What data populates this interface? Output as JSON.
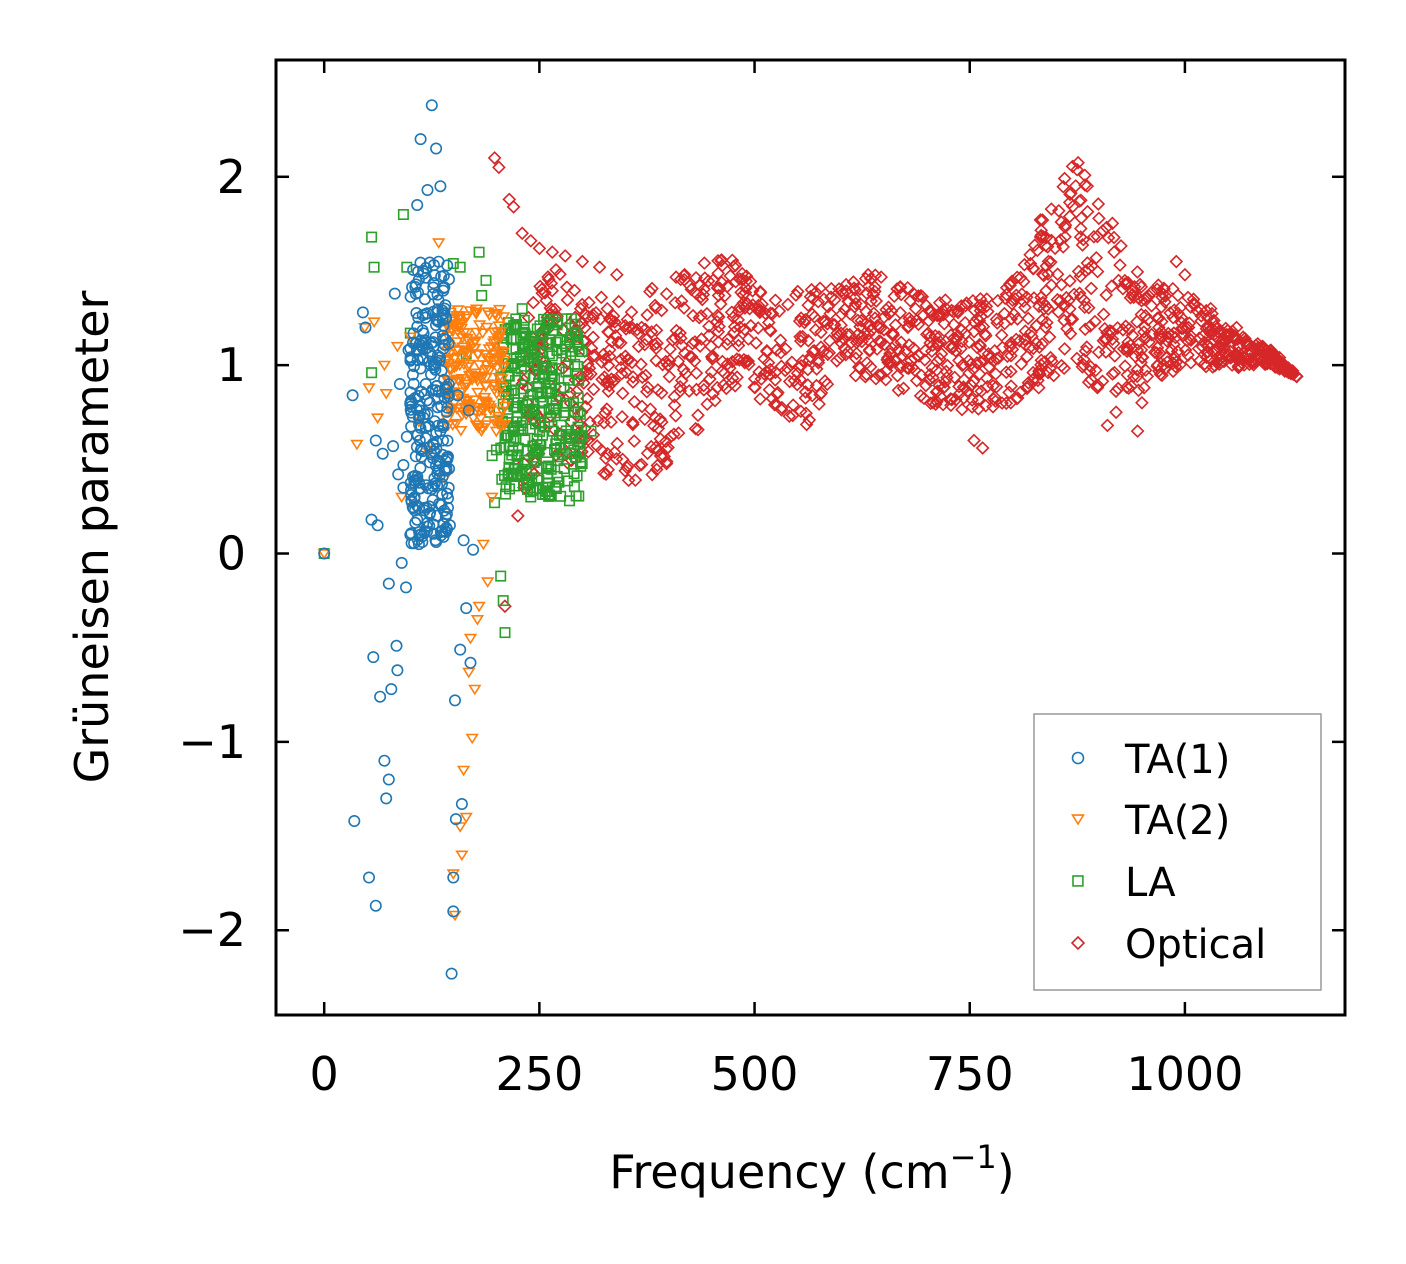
{
  "chart_data": {
    "type": "scatter",
    "xlabel": "Frequency (cm",
    "xlabel_sup": "−1",
    "xlabel_close": ")",
    "ylabel": "Grüneisen parameter",
    "xlim": [
      -56,
      1186
    ],
    "ylim": [
      -2.45,
      2.62
    ],
    "xticks": [
      0,
      250,
      500,
      750,
      1000
    ],
    "xtick_labels": [
      "0",
      "250",
      "500",
      "750",
      "1000"
    ],
    "yticks": [
      -2,
      -1,
      0,
      1,
      2
    ],
    "ytick_labels": [
      "−2",
      "−1",
      "0",
      "1",
      "2"
    ],
    "legend_position": "lower-right",
    "series": [
      {
        "name": "TA(1)",
        "marker": "circle",
        "color": "#1f77b4",
        "points": [
          [
            0,
            0
          ],
          [
            33,
            0.84
          ],
          [
            45,
            1.28
          ],
          [
            48,
            1.2
          ],
          [
            55,
            0.18
          ],
          [
            57,
            -0.55
          ],
          [
            60,
            0.6
          ],
          [
            62,
            0.15
          ],
          [
            65,
            -0.76
          ],
          [
            68,
            0.53
          ],
          [
            70,
            -1.1
          ],
          [
            72,
            -1.3
          ],
          [
            75,
            -0.16
          ],
          [
            78,
            -0.72
          ],
          [
            80,
            0.57
          ],
          [
            82,
            1.38
          ],
          [
            84,
            -0.49
          ],
          [
            85,
            -0.62
          ],
          [
            88,
            0.9
          ],
          [
            90,
            -0.05
          ],
          [
            92,
            0.47
          ],
          [
            95,
            -0.18
          ],
          [
            98,
            1.08
          ],
          [
            100,
            0.8
          ],
          [
            105,
            0.3
          ],
          [
            108,
            1.85
          ],
          [
            110,
            0.72
          ],
          [
            112,
            2.2
          ],
          [
            115,
            1.5
          ],
          [
            118,
            0.9
          ],
          [
            120,
            1.93
          ],
          [
            122,
            0.25
          ],
          [
            125,
            2.38
          ],
          [
            127,
            1.1
          ],
          [
            130,
            2.15
          ],
          [
            132,
            1.05
          ],
          [
            135,
            1.95
          ],
          [
            138,
            0.6
          ],
          [
            140,
            1.3
          ],
          [
            145,
            0.45
          ],
          [
            148,
            -2.23
          ],
          [
            150,
            -1.72
          ],
          [
            152,
            -0.78
          ],
          [
            155,
            0.84
          ],
          [
            158,
            -0.51
          ],
          [
            160,
            -1.33
          ],
          [
            162,
            0.07
          ],
          [
            165,
            -0.29
          ],
          [
            168,
            0.76
          ],
          [
            170,
            -0.58
          ],
          [
            173,
            0.02
          ],
          [
            35,
            -1.42
          ],
          [
            52,
            -1.72
          ],
          [
            60,
            -1.87
          ],
          [
            75,
            -1.2
          ],
          [
            150,
            -1.9
          ],
          [
            153,
            -1.41
          ],
          [
            110,
            0.05
          ],
          [
            128,
            0.4
          ],
          [
            135,
            0.65
          ],
          [
            142,
            0.87
          ],
          [
            146,
            0.15
          ],
          [
            103,
            0.95
          ],
          [
            117,
            1.35
          ],
          [
            124,
            1.0
          ],
          [
            131,
            0.2
          ],
          [
            137,
            0.12
          ],
          [
            96,
            0.62
          ],
          [
            86,
            0.42
          ],
          [
            92,
            0.35
          ],
          [
            100,
            0.1
          ]
        ],
        "cluster": {
          "x": [
            100,
            145
          ],
          "y": [
            0.05,
            1.55
          ],
          "count": 260
        }
      },
      {
        "name": "TA(2)",
        "marker": "triangle-down",
        "color": "#ff7f0e",
        "points": [
          [
            0,
            0
          ],
          [
            38,
            0.58
          ],
          [
            47,
            1.2
          ],
          [
            52,
            0.88
          ],
          [
            58,
            1.23
          ],
          [
            62,
            0.72
          ],
          [
            70,
            1.0
          ],
          [
            72,
            0.85
          ],
          [
            85,
            1.1
          ],
          [
            90,
            0.3
          ],
          [
            100,
            1.15
          ],
          [
            110,
            0.7
          ],
          [
            120,
            0.55
          ],
          [
            133,
            1.65
          ],
          [
            140,
            0.4
          ],
          [
            150,
            -1.7
          ],
          [
            152,
            -1.92
          ],
          [
            158,
            -1.45
          ],
          [
            160,
            -1.6
          ],
          [
            162,
            -1.15
          ],
          [
            165,
            -1.4
          ],
          [
            168,
            -0.63
          ],
          [
            170,
            -0.45
          ],
          [
            172,
            -0.98
          ],
          [
            175,
            -0.72
          ],
          [
            178,
            -0.35
          ],
          [
            180,
            -0.28
          ],
          [
            185,
            0.05
          ],
          [
            190,
            -0.15
          ],
          [
            195,
            0.3
          ],
          [
            200,
            0.65
          ]
        ],
        "cluster": {
          "x": [
            140,
            210
          ],
          "y": [
            0.65,
            1.3
          ],
          "count": 200
        }
      },
      {
        "name": "LA",
        "marker": "square",
        "color": "#2ca02c",
        "points": [
          [
            0,
            0
          ],
          [
            55,
            1.68
          ],
          [
            58,
            1.52
          ],
          [
            55,
            0.96
          ],
          [
            92,
            1.8
          ],
          [
            96,
            1.52
          ],
          [
            100,
            1.17
          ],
          [
            150,
            1.54
          ],
          [
            158,
            1.52
          ],
          [
            165,
            1.06
          ],
          [
            180,
            1.6
          ],
          [
            183,
            1.37
          ],
          [
            188,
            1.45
          ],
          [
            192,
            0.75
          ],
          [
            195,
            0.52
          ],
          [
            198,
            0.27
          ],
          [
            200,
            0.55
          ],
          [
            205,
            -0.12
          ],
          [
            208,
            -0.25
          ],
          [
            210,
            -0.42
          ],
          [
            215,
            0.5
          ],
          [
            220,
            0.6
          ],
          [
            225,
            0.8
          ],
          [
            230,
            1.3
          ],
          [
            240,
            0.3
          ],
          [
            250,
            0.95
          ],
          [
            260,
            0.85
          ],
          [
            270,
            0.6
          ],
          [
            285,
            0.28
          ],
          [
            290,
            0.55
          ],
          [
            300,
            0.62
          ],
          [
            310,
            0.65
          ]
        ],
        "cluster": {
          "x": [
            205,
            300
          ],
          "y": [
            0.3,
            1.25
          ],
          "count": 320
        }
      },
      {
        "name": "Optical",
        "marker": "diamond",
        "color": "#d62728",
        "points": [
          [
            198,
            2.1
          ],
          [
            203,
            2.05
          ],
          [
            215,
            1.88
          ],
          [
            220,
            1.84
          ],
          [
            230,
            1.7
          ],
          [
            240,
            1.66
          ],
          [
            250,
            1.62
          ],
          [
            265,
            1.6
          ],
          [
            280,
            1.58
          ],
          [
            300,
            1.55
          ],
          [
            320,
            1.52
          ],
          [
            340,
            1.48
          ],
          [
            210,
            -0.28
          ],
          [
            225,
            0.2
          ],
          [
            232,
            0.35
          ],
          [
            755,
            0.6
          ],
          [
            765,
            0.56
          ],
          [
            910,
            0.68
          ],
          [
            920,
            0.75
          ],
          [
            945,
            0.65
          ],
          [
            950,
            0.8
          ],
          [
            990,
            1.55
          ],
          [
            1000,
            1.48
          ],
          [
            1030,
            1.3
          ],
          [
            1060,
            1.2
          ],
          [
            1090,
            1.1
          ],
          [
            1110,
            1.04
          ],
          [
            1125,
            0.97
          ],
          [
            1130,
            0.94
          ]
        ],
        "envelope": {
          "x": [
            230,
            260,
            300,
            350,
            400,
            450,
            480,
            520,
            560,
            600,
            650,
            700,
            750,
            800,
            840,
            870,
            900,
            950,
            1000,
            1050,
            1100,
            1130
          ],
          "upper": [
            1.6,
            1.55,
            1.4,
            1.35,
            1.45,
            1.6,
            1.55,
            1.35,
            1.42,
            1.45,
            1.5,
            1.35,
            1.35,
            1.45,
            1.85,
            2.13,
            1.9,
            1.45,
            1.4,
            1.2,
            1.08,
            0.94
          ],
          "lower": [
            0.3,
            0.45,
            0.5,
            0.35,
            0.45,
            0.75,
            0.85,
            0.8,
            0.65,
            0.95,
            0.9,
            0.8,
            0.75,
            0.8,
            0.9,
            1.0,
            0.85,
            0.85,
            1.0,
            0.98,
            1.0,
            0.94
          ],
          "count": 1400
        }
      }
    ]
  }
}
